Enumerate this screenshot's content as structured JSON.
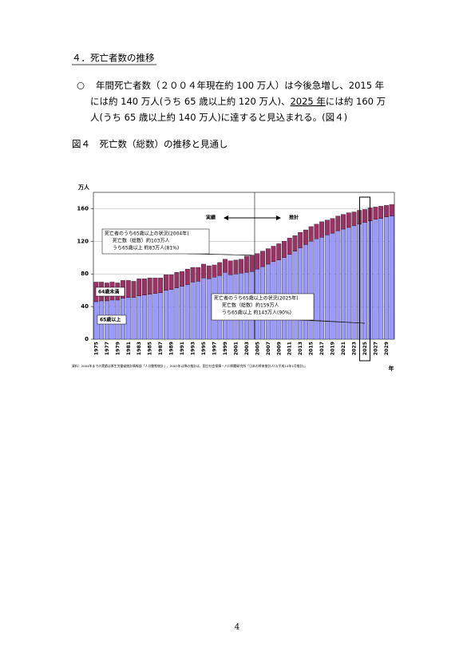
{
  "heading": "４．死亡者数の推移",
  "paragraph": {
    "bullet": "○",
    "lines": [
      [
        "年間死亡者数（２００４年現在約 100 万人）は今後急増し、2015 年"
      ],
      [
        "には約 140 万人(うち 65 歳以上約 120 万人)、",
        "2025 年",
        "には約 160 万"
      ],
      [
        "人(うち 65 歳以上約 140 万人)に達すると見込まれる。(図４)"
      ]
    ]
  },
  "figure_caption": "図４　死亡数（総数）の推移と見通し",
  "chart_data": {
    "type": "bar",
    "stacked": true,
    "y_unit": "万人",
    "x_unit": "年",
    "categories": [
      "1975",
      null,
      "1977",
      null,
      "1979",
      null,
      "1981",
      null,
      "1983",
      null,
      "1985",
      null,
      "1987",
      null,
      "1989",
      null,
      "1991",
      null,
      "1993",
      null,
      "1995",
      null,
      "1997",
      null,
      "1999",
      null,
      "2001",
      null,
      "2003",
      null,
      "2005",
      null,
      "2007",
      null,
      "2009",
      null,
      "2011",
      null,
      "2013",
      null,
      "2015",
      null,
      "2017",
      null,
      "2019",
      null,
      "2021",
      null,
      "2023",
      null,
      "2025",
      null,
      "2027",
      null,
      "2029",
      null
    ],
    "series": [
      {
        "name": "65歳以上",
        "color": "#9999ff",
        "values": [
          46,
          47,
          47,
          48,
          48,
          50,
          51,
          51,
          53,
          54,
          55,
          56,
          57,
          60,
          61,
          63,
          65,
          67,
          70,
          71,
          75,
          74,
          76,
          78,
          82,
          79,
          80,
          81,
          82,
          83,
          86,
          89,
          92,
          95,
          97,
          100,
          104,
          108,
          112,
          116,
          120,
          123,
          125,
          128,
          130,
          133,
          135,
          137,
          139,
          141,
          143,
          145,
          147,
          148,
          150,
          151
        ]
      },
      {
        "name": "64歳未満",
        "color": "#993366",
        "values": [
          24,
          23,
          22,
          22,
          21,
          22,
          21,
          20,
          21,
          20,
          20,
          19,
          18,
          19,
          18,
          19,
          18,
          19,
          18,
          17,
          17,
          16,
          15,
          16,
          16,
          17,
          17,
          17,
          20,
          20,
          19,
          19,
          19,
          19,
          20,
          20,
          20,
          19,
          19,
          18,
          18,
          18,
          19,
          18,
          18,
          18,
          18,
          18,
          17,
          17,
          16,
          16,
          15,
          15,
          14,
          14
        ]
      }
    ],
    "ylim": [
      0,
      180
    ],
    "yticks": [
      0,
      40,
      80,
      120,
      160
    ],
    "grid": true,
    "annotations": {
      "actual": "実績",
      "projection": "推計",
      "callout_2004": [
        "死亡者のうち65歳以上の状況(2004年)",
        "死亡数（総数）約103万人",
        "うち65歳以上 約83万人(81%)"
      ],
      "callout_2025": [
        "死亡者のうち65歳以上の状況(2025年)",
        "死亡数（総数）約159万人",
        "うち65歳以上 約143万人(90%)"
      ]
    },
    "source": "資料：2004年までの実績は厚生労働省統計情報部「人口動態統計」、2005年以降の推計は、国立社会保障・人口問題研究所「日本の将来推計人口(平成14年1月推計)」"
  },
  "page_number": 4
}
